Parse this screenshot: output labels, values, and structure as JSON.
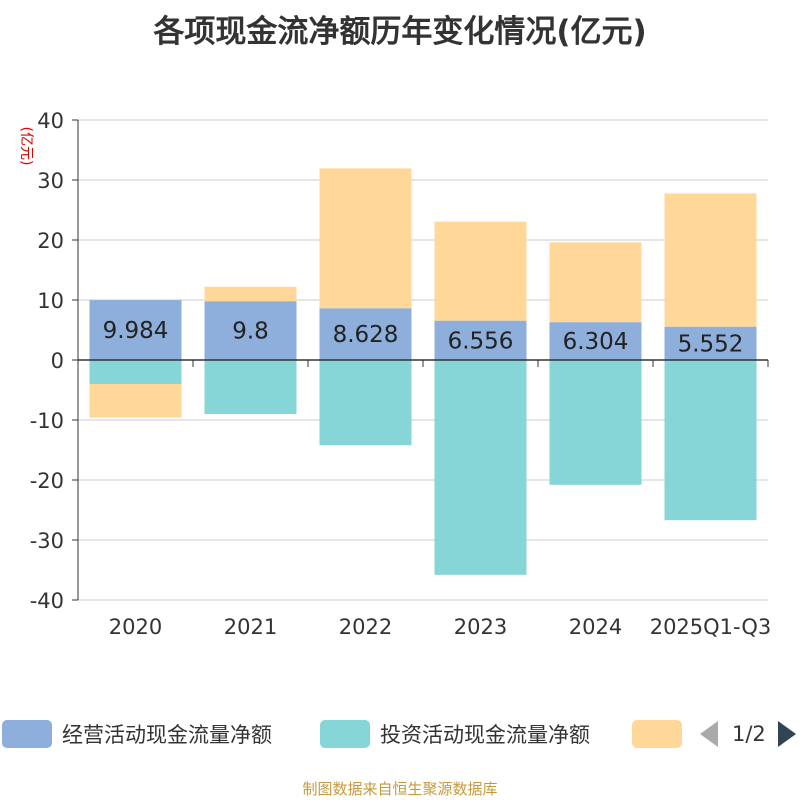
{
  "chart_data": {
    "type": "bar",
    "stacked": true,
    "title": "各项现金流净额历年变化情况(亿元)",
    "ylabel": "(亿元)",
    "xlabel": "",
    "ylim": [
      -40,
      40
    ],
    "yticks": [
      -40,
      -30,
      -20,
      -10,
      0,
      10,
      20,
      30,
      40
    ],
    "categories": [
      "2020",
      "2021",
      "2022",
      "2023",
      "2024",
      "2025Q1-Q3"
    ],
    "series": [
      {
        "name": "经营活动现金流量净额",
        "color": "#8eaedb",
        "values": [
          9.984,
          9.8,
          8.628,
          6.556,
          6.304,
          5.552
        ],
        "show_labels": true
      },
      {
        "name": "投资活动现金流量净额",
        "color": "#86d5d7",
        "values": [
          -4.0,
          -9.0,
          -14.2,
          -35.8,
          -20.8,
          -26.7
        ],
        "show_labels": false
      },
      {
        "name": "",
        "color": "#ffd899",
        "values": [
          -5.6,
          2.4,
          23.3,
          16.5,
          13.3,
          22.2
        ],
        "show_labels": false
      }
    ],
    "legend_position": "bottom",
    "grid": true
  },
  "pager": {
    "text": "1/2"
  },
  "source": "制图数据来自恒生聚源数据库"
}
